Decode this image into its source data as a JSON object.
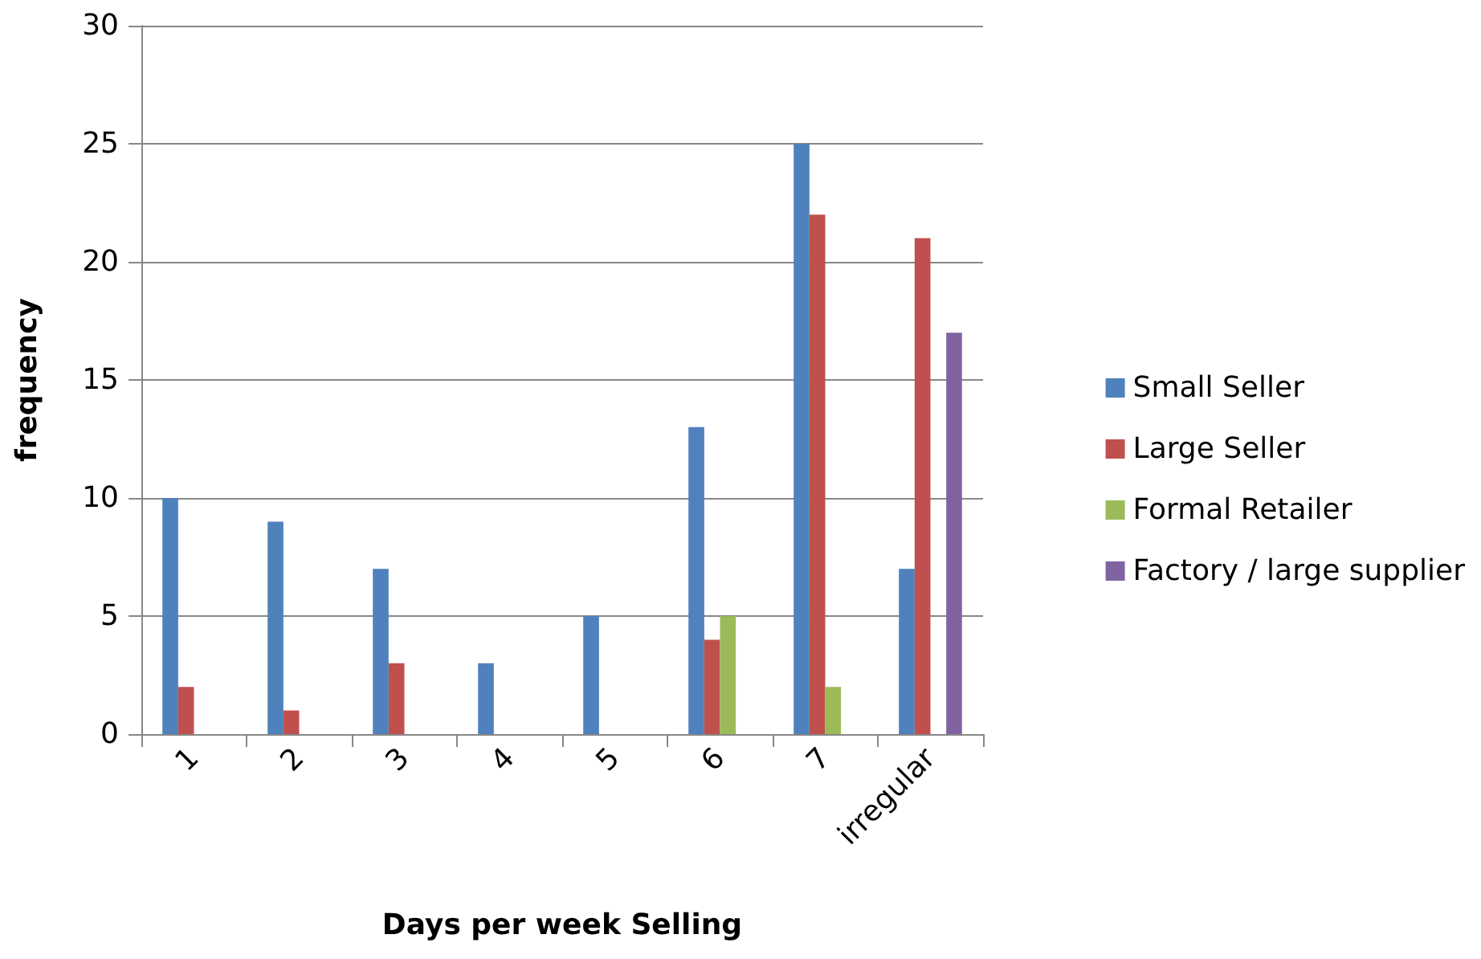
{
  "chart_data": {
    "type": "bar",
    "xlabel": "Days per week Selling",
    "ylabel": "frequency",
    "categories": [
      "1",
      "2",
      "3",
      "4",
      "5",
      "6",
      "7",
      "irregular"
    ],
    "series": [
      {
        "name": "Small Seller",
        "color": "#4f81bd",
        "values": [
          10,
          9,
          7,
          3,
          5,
          13,
          25,
          7
        ]
      },
      {
        "name": "Large Seller",
        "color": "#c0504d",
        "values": [
          2,
          1,
          3,
          0,
          0,
          4,
          22,
          21
        ]
      },
      {
        "name": "Formal Retailer",
        "color": "#9bbb59",
        "values": [
          0,
          0,
          0,
          0,
          0,
          5,
          2,
          0
        ]
      },
      {
        "name": "Factory / large supplier",
        "color": "#8064a2",
        "values": [
          0,
          0,
          0,
          0,
          0,
          0,
          0,
          17
        ]
      }
    ],
    "ylim": [
      0,
      30
    ],
    "yticks": [
      0,
      5,
      10,
      15,
      20,
      25,
      30
    ],
    "grid": "y",
    "legend": "right"
  }
}
